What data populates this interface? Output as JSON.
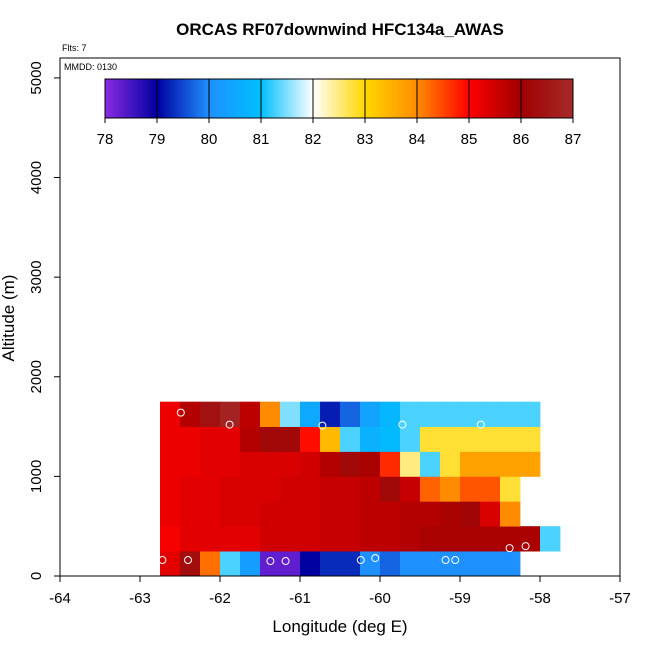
{
  "chart_data": {
    "type": "heatmap",
    "title": "ORCAS RF07downwind HFC134a_AWAS",
    "annotations": {
      "flights": "Flts: 7",
      "date": "MMDD: 0130"
    },
    "xlabel": "Longitude (deg E)",
    "ylabel": "Altitude (m)",
    "xlim": [
      -64,
      -57
    ],
    "ylim": [
      0,
      5200
    ],
    "xticks": [
      -64,
      -63,
      -62,
      -61,
      -60,
      -59,
      -58,
      -57
    ],
    "yticks": [
      0,
      1000,
      2000,
      3000,
      4000,
      5000
    ],
    "x_cell_width": 0.25,
    "y_cell_height": 250,
    "colorbar": {
      "min": 78,
      "max": 87,
      "ticks": [
        78,
        79,
        80,
        81,
        82,
        83,
        84,
        85,
        86,
        87
      ],
      "stops": [
        "#8a2be2",
        "#0000a0",
        "#1e90ff",
        "#00bfff",
        "#ffffff",
        "#ffd700",
        "#ff8c00",
        "#ff0000",
        "#a00000",
        "#a52a2a"
      ]
    },
    "rows": [
      {
        "y0": 0,
        "x0": -62.75,
        "values": [
          85.3,
          86.3,
          84.2,
          81.3,
          80.3,
          78.3,
          78.3,
          79.0,
          79.3,
          79.3,
          80.0,
          79.7,
          80.0,
          80.0,
          80.0,
          80.0,
          80.0,
          80.0
        ]
      },
      {
        "y0": 250,
        "x0": -62.75,
        "values": [
          85.1,
          85.3,
          85.3,
          85.3,
          85.3,
          85.5,
          85.5,
          85.5,
          85.6,
          85.6,
          85.7,
          85.7,
          85.8,
          85.9,
          85.9,
          85.9,
          85.9,
          85.9,
          85.9,
          81.3
        ]
      },
      {
        "y0": 500,
        "x0": -62.75,
        "values": [
          85.2,
          85.3,
          85.3,
          85.4,
          85.4,
          85.5,
          85.5,
          85.5,
          85.6,
          85.6,
          85.7,
          85.7,
          85.8,
          85.8,
          85.9,
          86.1,
          85.4,
          84.0
        ]
      },
      {
        "y0": 750,
        "x0": -62.75,
        "values": [
          85.2,
          85.3,
          85.3,
          85.4,
          85.4,
          85.4,
          85.5,
          85.5,
          85.6,
          85.6,
          85.7,
          86.2,
          85.6,
          84.3,
          84.0,
          84.4,
          84.4,
          82.8
        ]
      },
      {
        "y0": 1000,
        "x0": -62.75,
        "values": [
          85.2,
          85.2,
          85.3,
          85.3,
          85.4,
          85.4,
          85.4,
          85.5,
          85.8,
          86.2,
          85.9,
          84.7,
          82.5,
          81.3,
          82.8,
          83.7,
          83.7,
          83.7,
          83.7
        ]
      },
      {
        "y0": 1250,
        "x0": -62.75,
        "values": [
          85.2,
          85.2,
          85.3,
          85.3,
          85.8,
          86.2,
          86.2,
          84.9,
          83.4,
          81.3,
          80.7,
          80.9,
          81.3,
          82.8,
          82.8,
          82.8,
          82.8,
          82.8,
          82.8
        ]
      },
      {
        "y0": 1500,
        "x0": -62.75,
        "values": [
          85.2,
          85.8,
          86.4,
          86.8,
          85.7,
          84.0,
          81.5,
          80.5,
          79.2,
          79.7,
          80.4,
          80.8,
          81.3,
          81.3,
          81.3,
          81.3,
          81.3,
          81.3,
          81.3
        ]
      }
    ],
    "samples": [
      {
        "x": -62.72,
        "y": 160
      },
      {
        "x": -62.4,
        "y": 160
      },
      {
        "x": -61.37,
        "y": 150
      },
      {
        "x": -61.18,
        "y": 150
      },
      {
        "x": -60.24,
        "y": 160
      },
      {
        "x": -60.06,
        "y": 180
      },
      {
        "x": -59.18,
        "y": 160
      },
      {
        "x": -59.06,
        "y": 160
      },
      {
        "x": -58.38,
        "y": 280
      },
      {
        "x": -58.18,
        "y": 300
      },
      {
        "x": -62.49,
        "y": 1640
      },
      {
        "x": -61.88,
        "y": 1520
      },
      {
        "x": -60.72,
        "y": 1510
      },
      {
        "x": -59.72,
        "y": 1520
      },
      {
        "x": -58.74,
        "y": 1520
      }
    ]
  }
}
